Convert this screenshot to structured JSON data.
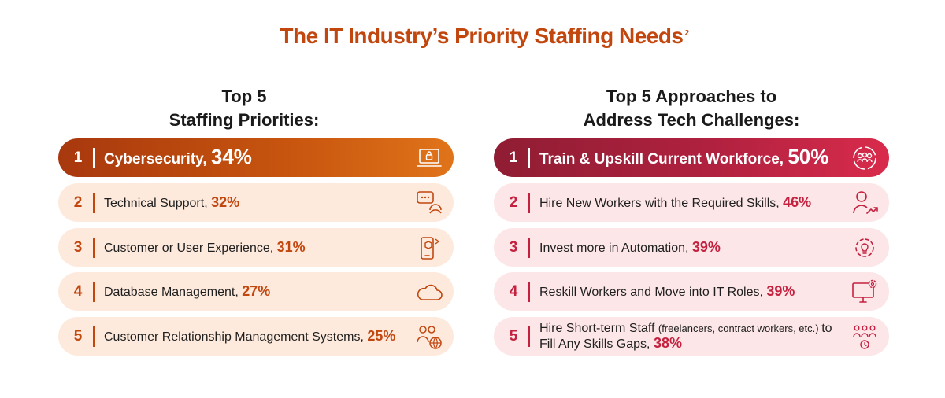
{
  "title": "The IT Industry’s Priority Staffing Needs",
  "title_footnote": "2",
  "chart_data": [
    {
      "type": "table",
      "title": "Top 5 Staffing Priorities:",
      "title_lines": [
        "Top 5",
        "Staffing Priorities:"
      ],
      "items": [
        {
          "rank": "1",
          "label": "Cybersecurity,",
          "label_note": "",
          "label_tail": "",
          "value": 34,
          "value_text": "34%",
          "icon": "laptop-lock-icon"
        },
        {
          "rank": "2",
          "label": "Technical Support,",
          "label_note": "",
          "label_tail": "",
          "value": 32,
          "value_text": "32%",
          "icon": "chat-headset-icon"
        },
        {
          "rank": "3",
          "label": "Customer or User Experience,",
          "label_note": "",
          "label_tail": "",
          "value": 31,
          "value_text": "31%",
          "icon": "phone-box-icon"
        },
        {
          "rank": "4",
          "label": "Database Management,",
          "label_note": "",
          "label_tail": "",
          "value": 27,
          "value_text": "27%",
          "icon": "cloud-icon"
        },
        {
          "rank": "5",
          "label": "Customer Relationship Management Systems,",
          "label_note": "",
          "label_tail": "",
          "value": 25,
          "value_text": "25%",
          "icon": "people-globe-icon"
        }
      ],
      "accent": "#c2470f"
    },
    {
      "type": "table",
      "title": "Top 5 Approaches to Address Tech Challenges:",
      "title_lines": [
        "Top 5 Approaches to",
        "Address Tech Challenges:"
      ],
      "items": [
        {
          "rank": "1",
          "label": "Train & Upskill Current Workforce,",
          "label_note": "",
          "label_tail": "",
          "value": 50,
          "value_text": "50%",
          "icon": "team-cycle-icon"
        },
        {
          "rank": "2",
          "label": "Hire New Workers with the Required Skills,",
          "label_note": "",
          "label_tail": "",
          "value": 46,
          "value_text": "46%",
          "icon": "person-growth-icon"
        },
        {
          "rank": "3",
          "label": "Invest more in Automation,",
          "label_note": "",
          "label_tail": "",
          "value": 39,
          "value_text": "39%",
          "icon": "gear-bulb-icon"
        },
        {
          "rank": "4",
          "label": "Reskill Workers and Move into IT Roles,",
          "label_note": "",
          "label_tail": "",
          "value": 39,
          "value_text": "39%",
          "icon": "monitor-gear-icon"
        },
        {
          "rank": "5",
          "label": "Hire Short-term Staff",
          "label_note": "(freelancers, contract workers, etc.)",
          "label_tail": "to Fill Any Skills Gaps,",
          "value": 38,
          "value_text": "38%",
          "icon": "staff-clock-icon"
        }
      ],
      "accent": "#c4213f"
    }
  ]
}
